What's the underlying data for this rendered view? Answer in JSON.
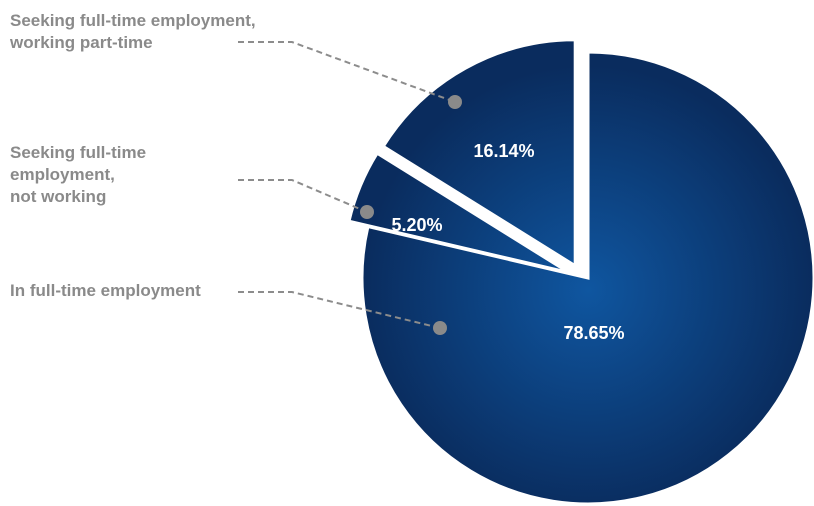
{
  "chart_data": {
    "type": "pie",
    "title": "",
    "slices": [
      {
        "category": "In full-time employment",
        "label_lines": [
          "In full-time employment"
        ],
        "value": 78.65,
        "value_label": "78.65%",
        "color": "#0d4b8e"
      },
      {
        "category": "Seeking full-time employment, not working",
        "label_lines": [
          "Seeking full-time",
          "employment,",
          "not working"
        ],
        "value": 5.2,
        "value_label": "5.20%",
        "color": "#0d4b8e"
      },
      {
        "category": "Seeking full-time employment, working part-time",
        "label_lines": [
          "Seeking full-time employment,",
          "working part-time"
        ],
        "value": 16.14,
        "value_label": "16.14%",
        "color": "#0d4b8e"
      }
    ],
    "legend": "callouts-left",
    "colors": {
      "slice_center": "#0f56a0",
      "slice_edge": "#0a2c5e",
      "label_text": "#8a8a8a",
      "value_text": "#ffffff",
      "leader_line": "#8c8c8c"
    }
  }
}
